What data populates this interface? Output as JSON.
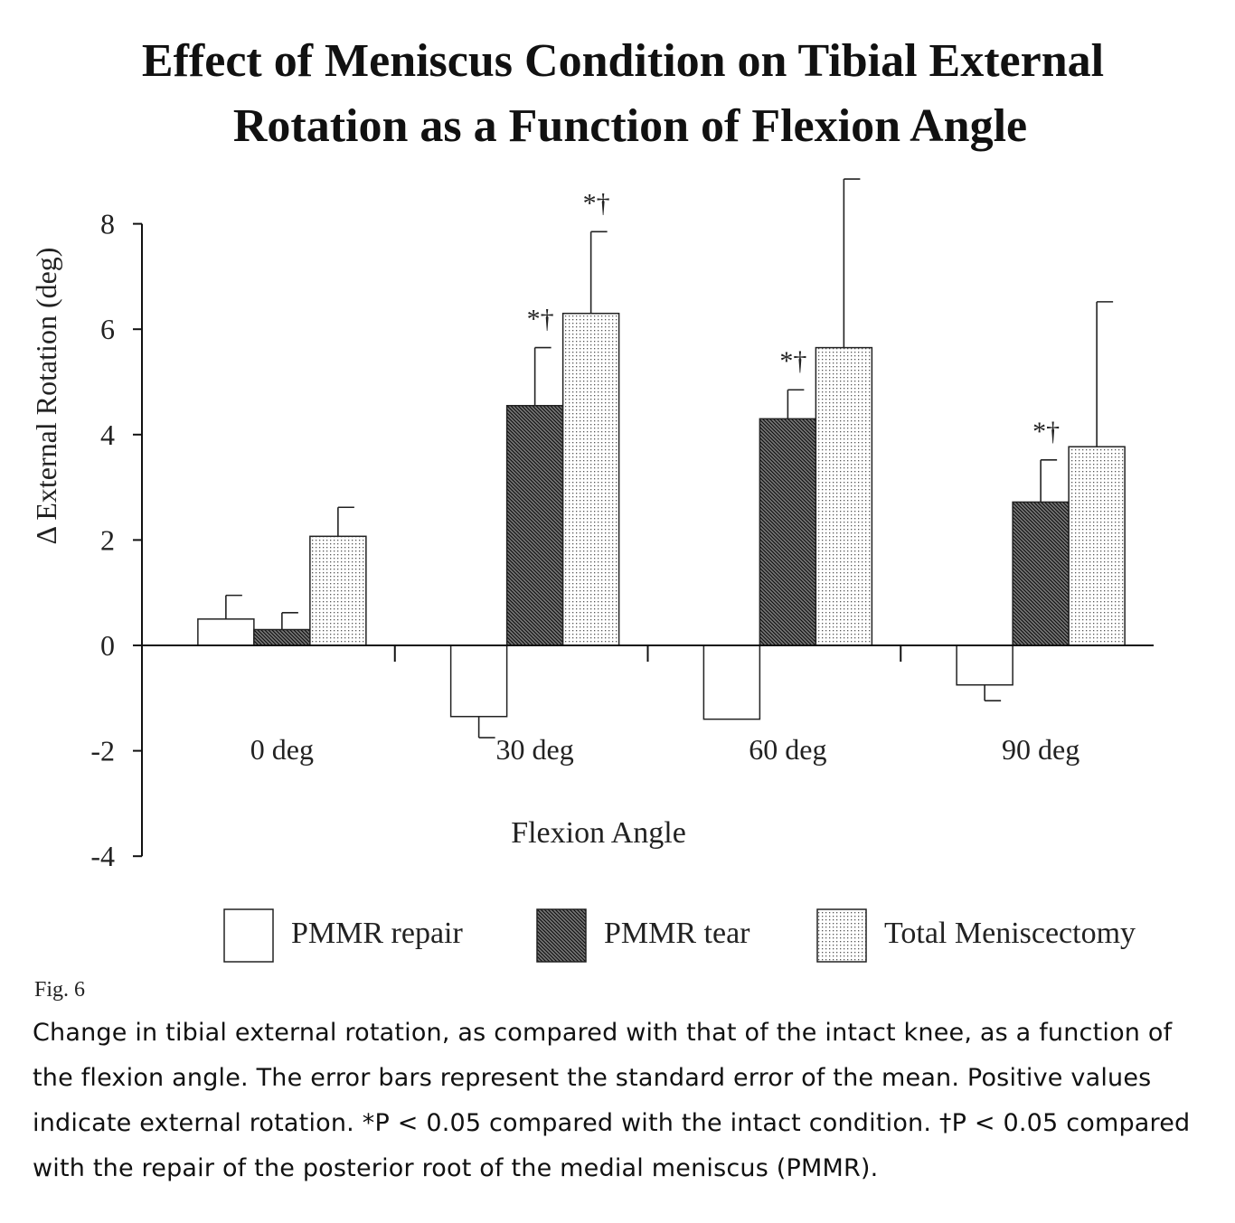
{
  "chart_data": {
    "type": "bar",
    "title_lines": [
      "Effect of Meniscus Condition on Tibial External",
      "Rotation as a Function of Flexion Angle"
    ],
    "xlabel": "Flexion Angle",
    "ylabel": "Δ External Rotation (deg)",
    "ylim": [
      -4,
      8
    ],
    "yticks": [
      -4,
      -2,
      0,
      2,
      4,
      6,
      8
    ],
    "categories": [
      "0 deg",
      "30 deg",
      "60 deg",
      "90 deg"
    ],
    "series": [
      {
        "name": "PMMR repair",
        "values": [
          0.5,
          -1.35,
          -1.4,
          -0.75
        ],
        "errors": [
          0.45,
          0.4,
          0.0,
          0.3
        ],
        "pattern": "white"
      },
      {
        "name": "PMMR tear",
        "values": [
          0.3,
          4.55,
          4.3,
          2.72
        ],
        "errors": [
          0.32,
          1.1,
          0.55,
          0.8
        ],
        "pattern": "hatch"
      },
      {
        "name": "Total Meniscectomy",
        "values": [
          2.07,
          6.3,
          5.65,
          3.77
        ],
        "errors": [
          0.55,
          1.55,
          3.2,
          2.75
        ],
        "pattern": "dots"
      }
    ],
    "annotations": [
      {
        "category": "30 deg",
        "series": "PMMR tear",
        "text": "*†"
      },
      {
        "category": "30 deg",
        "series": "Total Meniscectomy",
        "text": "*†"
      },
      {
        "category": "60 deg",
        "series": "PMMR tear",
        "text": "*†"
      },
      {
        "category": "90 deg",
        "series": "PMMR tear",
        "text": "*†"
      }
    ],
    "legend_position": "bottom",
    "grid": false
  },
  "figure": {
    "label": "Fig. 6",
    "caption": "Change in tibial external rotation, as compared with that of the intact knee, as a function of the flexion angle. The error bars represent the standard error of the mean. Positive values indicate external rotation. *P < 0.05 compared with the intact condition. †P < 0.05 compared with the repair of the posterior root of the medial meniscus (PMMR)."
  }
}
